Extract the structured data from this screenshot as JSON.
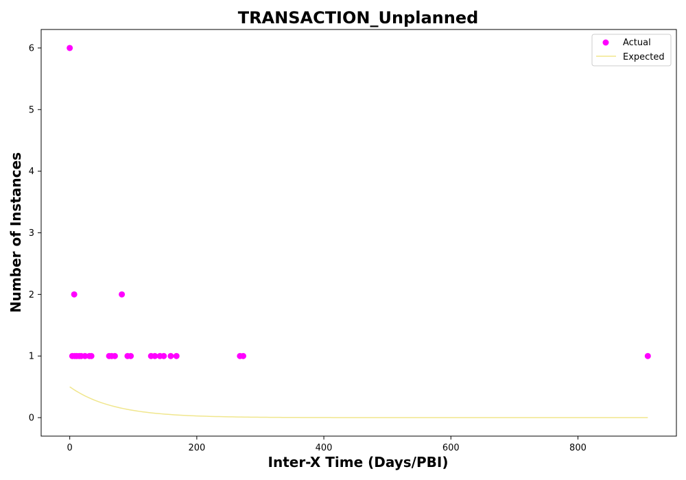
{
  "chart_data": {
    "type": "scatter",
    "title": "TRANSACTION_Unplanned",
    "xlabel": "Inter-X Time (Days/PBI)",
    "ylabel": "Number of Instances",
    "xlim": [
      -45,
      955
    ],
    "ylim": [
      -0.3,
      6.3
    ],
    "xticks": [
      0,
      200,
      400,
      600,
      800
    ],
    "yticks": [
      0,
      1,
      2,
      3,
      4,
      5,
      6
    ],
    "grid": false,
    "legend": "top-right",
    "series": [
      {
        "name": "Actual",
        "kind": "scatter",
        "color": "#ff00ff",
        "points": [
          [
            0,
            6
          ],
          [
            7,
            2
          ],
          [
            82,
            2
          ],
          [
            4,
            1
          ],
          [
            8,
            1
          ],
          [
            11,
            1
          ],
          [
            15,
            1
          ],
          [
            18,
            1
          ],
          [
            24,
            1
          ],
          [
            31,
            1
          ],
          [
            34,
            1
          ],
          [
            62,
            1
          ],
          [
            66,
            1
          ],
          [
            71,
            1
          ],
          [
            91,
            1
          ],
          [
            96,
            1
          ],
          [
            128,
            1
          ],
          [
            134,
            1
          ],
          [
            142,
            1
          ],
          [
            148,
            1
          ],
          [
            159,
            1
          ],
          [
            168,
            1
          ],
          [
            268,
            1
          ],
          [
            273,
            1
          ],
          [
            910,
            1
          ]
        ]
      },
      {
        "name": "Expected",
        "kind": "line",
        "color": "#f0e68c",
        "curve": {
          "form": "exponential",
          "a": 0.5,
          "k": 0.0145
        },
        "x_range": [
          0,
          910
        ]
      }
    ]
  }
}
